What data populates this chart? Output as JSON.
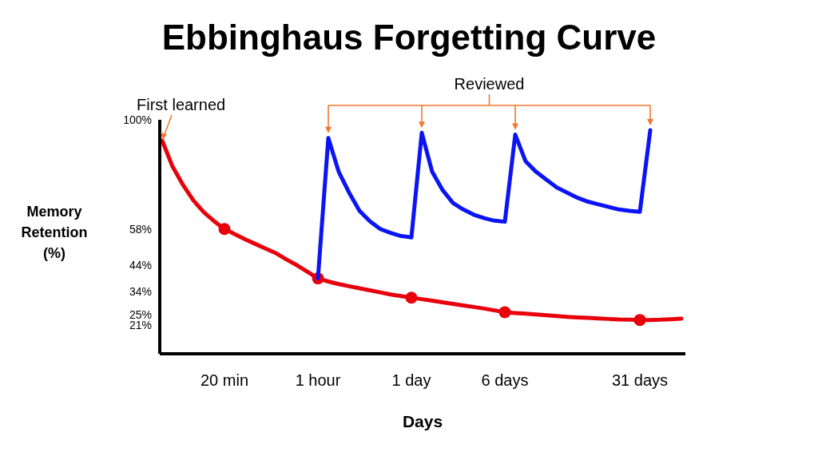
{
  "chart_data": {
    "type": "line",
    "title": "Ebbinghaus Forgetting Curve",
    "xlabel": "Days",
    "ylabel": "Memory Retention (%)",
    "categories": [
      null,
      null,
      null,
      null,
      null,
      null,
      "20 min",
      null,
      null,
      null,
      null,
      null,
      null,
      null,
      null,
      "1 hour",
      null,
      null,
      null,
      null,
      null,
      null,
      null,
      null,
      "1 day",
      null,
      null,
      null,
      null,
      null,
      null,
      null,
      null,
      "6 days",
      null,
      null,
      null,
      null,
      null,
      null,
      null,
      null,
      null,
      null,
      null,
      null,
      "31 days",
      null,
      null,
      null,
      null
    ],
    "ylim": [
      10,
      100
    ],
    "yticks": [
      {
        "value": 100,
        "label": "100%"
      },
      {
        "value": 58,
        "label": "58%"
      },
      {
        "value": 44,
        "label": "44%"
      },
      {
        "value": 34,
        "label": "34%"
      },
      {
        "value": 25,
        "label": "25%"
      },
      {
        "value": 21,
        "label": "21%"
      }
    ],
    "series": [
      {
        "type": "line",
        "color": "#e8000b",
        "marker": "none",
        "values": [
          92,
          82,
          75,
          69,
          64.5,
          61,
          58,
          56,
          54,
          52.2,
          50.4,
          48.6,
          46.2,
          44,
          41.5,
          39,
          37.8,
          36.8,
          36,
          35.2,
          34.4,
          33.6,
          32.8,
          32.2,
          31.6,
          31,
          30.4,
          29.8,
          29.2,
          28.6,
          28,
          27.4,
          26.7,
          26,
          25.7,
          25.4,
          25.1,
          24.8,
          24.5,
          24.2,
          24,
          23.8,
          23.6,
          23.4,
          23.2,
          23.1,
          23,
          23,
          23.1,
          23.3,
          23.5
        ]
      },
      {
        "type": "scatter",
        "color": "#e8000b",
        "marker": "circle",
        "values": [
          null,
          null,
          null,
          null,
          null,
          null,
          58,
          null,
          null,
          null,
          null,
          null,
          null,
          null,
          null,
          39,
          null,
          null,
          null,
          null,
          null,
          null,
          null,
          null,
          31.6,
          null,
          null,
          null,
          null,
          null,
          null,
          null,
          null,
          26,
          null,
          null,
          null,
          null,
          null,
          null,
          null,
          null,
          null,
          null,
          null,
          null,
          23,
          null,
          null,
          null,
          null
        ]
      },
      {
        "type": "line",
        "color": "#0a14f5",
        "marker": "none",
        "values": [
          null,
          null,
          null,
          null,
          null,
          null,
          null,
          null,
          null,
          null,
          null,
          null,
          null,
          null,
          null,
          39,
          93,
          80,
          72,
          65,
          61,
          58,
          56.5,
          55.3,
          54.8,
          95,
          80,
          73,
          68,
          65.5,
          63.5,
          62.2,
          61.2,
          60.8,
          94.3,
          84,
          80,
          77,
          74,
          72,
          70,
          68.5,
          67.5,
          66.5,
          65.5,
          65,
          64.6,
          96,
          null,
          null,
          null
        ]
      }
    ],
    "annotations": [
      "First learned",
      "Reviewed"
    ]
  }
}
